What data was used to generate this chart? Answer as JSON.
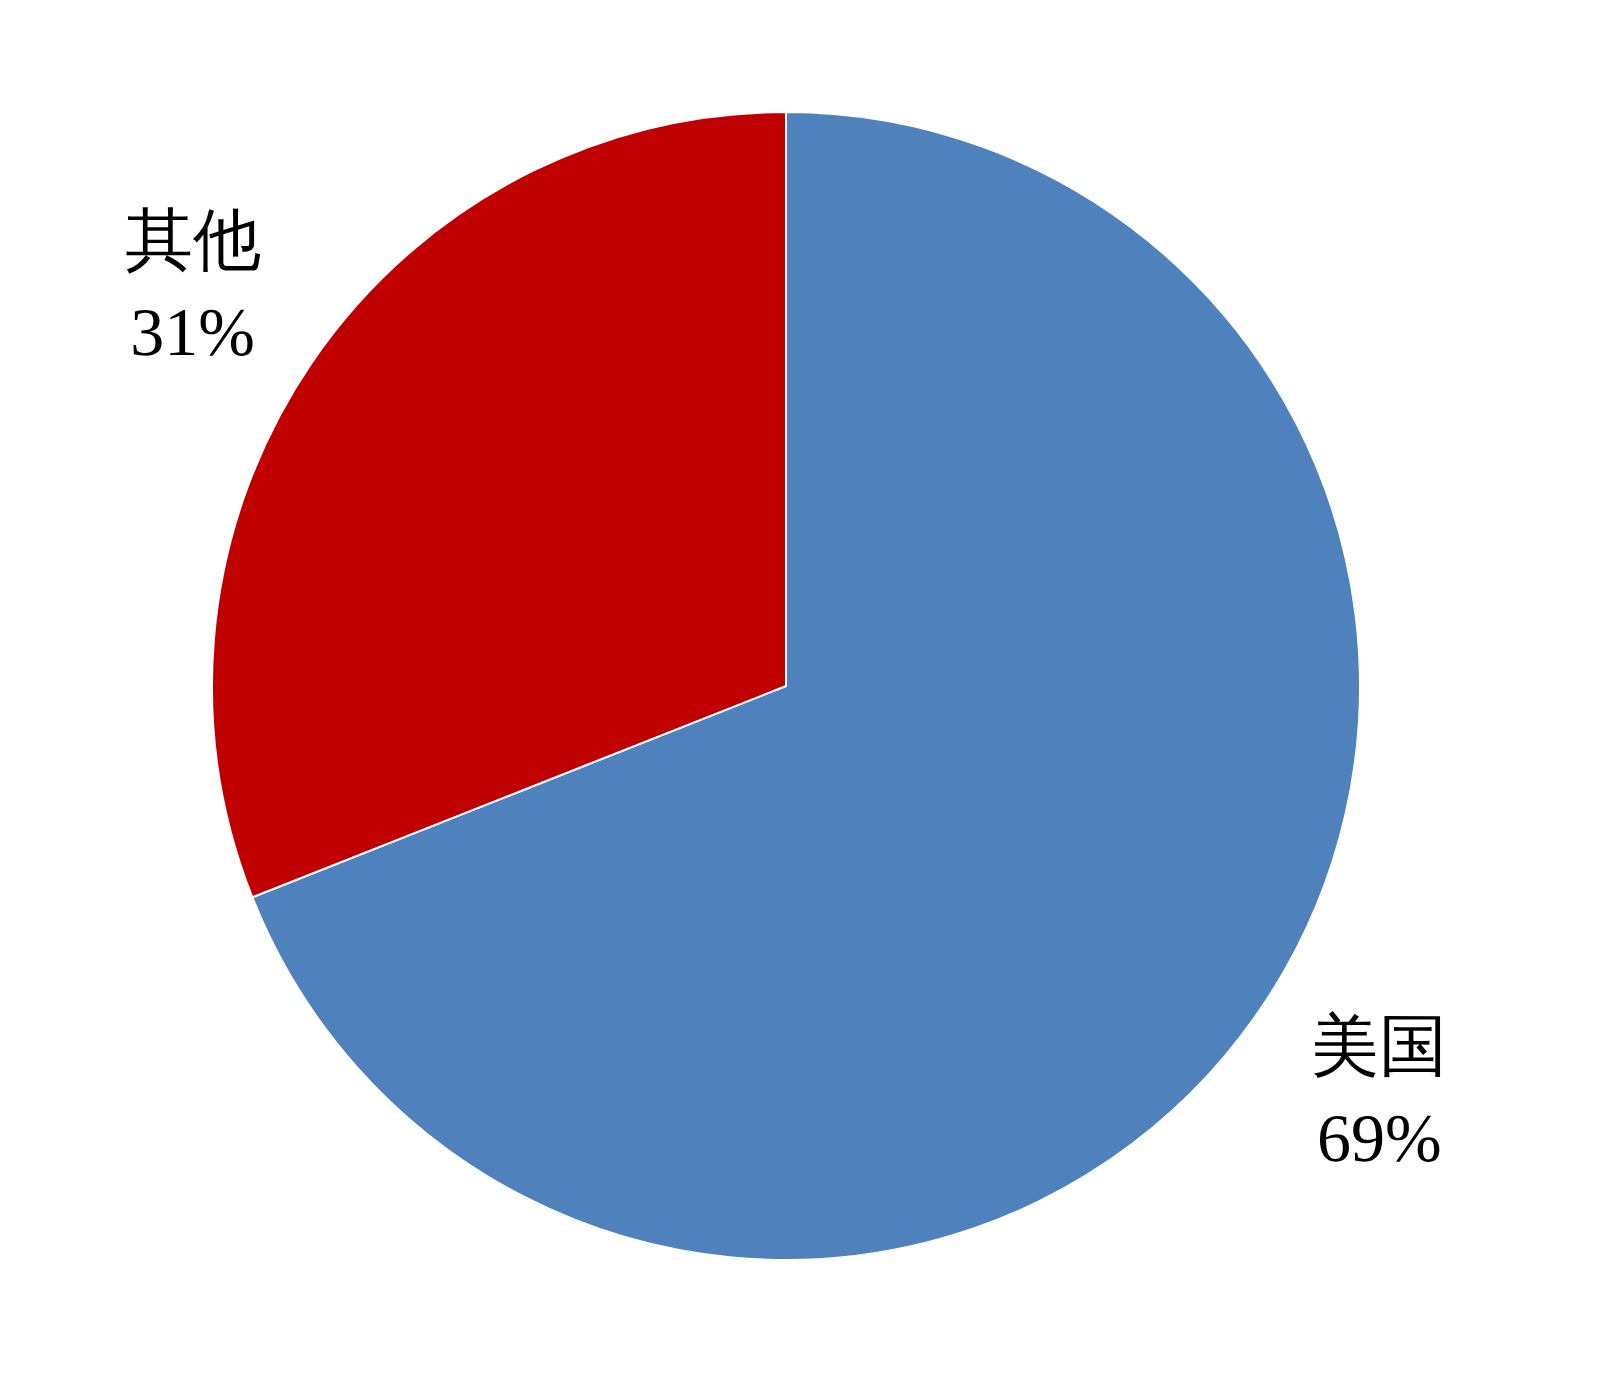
{
  "chart_data": {
    "type": "pie",
    "categories": [
      "美国",
      "其他"
    ],
    "values": [
      69,
      31
    ],
    "colors": [
      "#4f81bd",
      "#c00000"
    ],
    "value_labels": [
      "69%",
      "31%"
    ]
  }
}
